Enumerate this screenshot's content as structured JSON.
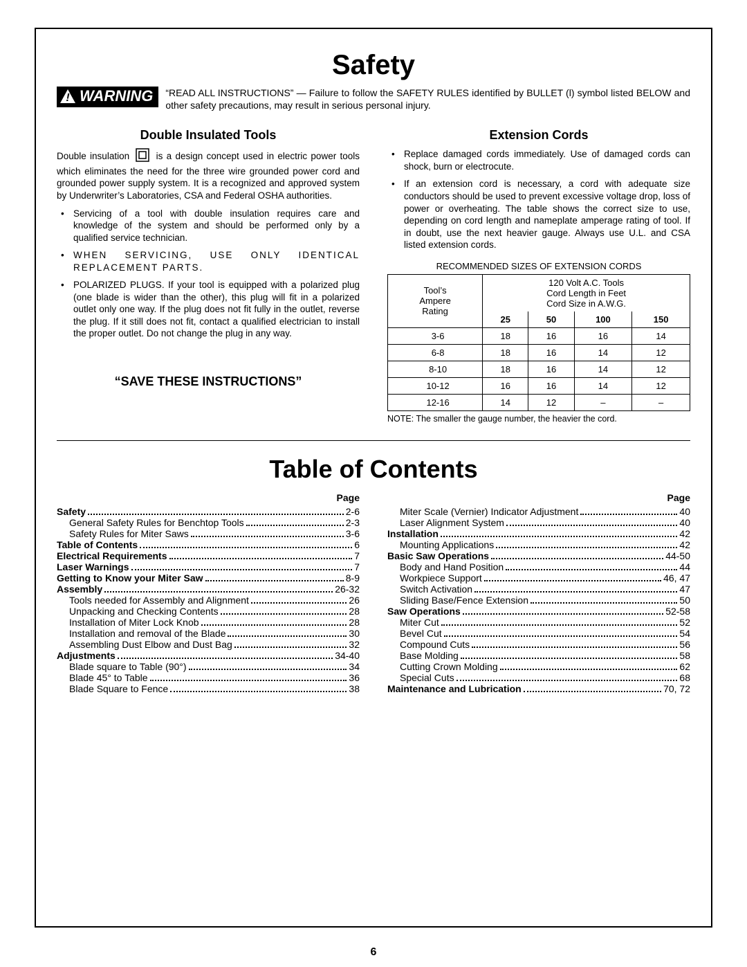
{
  "page_number": "6",
  "title_safety": "Safety",
  "title_toc": "Table of Contents",
  "warning_label": "WARNING",
  "warning_text": "“READ ALL INSTRUCTIONS” — Failure to follow the SAFETY RULES identified by BULLET (l) symbol listed BELOW and other safety precautions, may result in serious personal injury.",
  "left": {
    "heading": "Double Insulated Tools",
    "para_a": "Double insulation",
    "para_b": "is a design concept used in electric power tools which eliminates the need for the three wire grounded power cord and grounded power supply system.  It is a recognized and approved system by Underwriter’s Laboratories, CSA and Federal OSHA authorities.",
    "bullets": [
      "Servicing of a tool with double insulation requires care and knowledge of the system and should be performed only by a qualified service technician.",
      "WHEN SERVICING, USE ONLY IDENTICAL REPLACEMENT PARTS.",
      "POLARIZED PLUGS.  If your tool is equipped with a polarized plug (one blade is wider than the other), this plug will fit in a polarized outlet only one way.  If the plug does not fit fully in the outlet, reverse the plug. If it still does not fit, contact a qualified electrician to install the proper outlet.  Do not change the plug in any way."
    ],
    "save": "“SAVE THESE INSTRUCTIONS”"
  },
  "right": {
    "heading": "Extension Cords",
    "bullets": [
      "Replace damaged cords immediately.  Use of damaged cords can shock, burn or electrocute.",
      "If an extension cord is necessary, a cord with adequate size conductors should be used to prevent excessive voltage drop, loss of power or overheating.  The table shows the correct size to use, depending on cord length and nameplate amperage rating of tool.  If in doubt, use the next heavier gauge.  Always use U.L. and CSA listed extension cords."
    ],
    "table_title": "RECOMMENDED SIZES OF EXTENSION CORDS",
    "table": {
      "head_left": [
        "Tool’s",
        "Ampere",
        "Rating"
      ],
      "head_right": [
        "120 Volt A.C. Tools",
        "Cord Length in Feet",
        "Cord Size in A.W.G."
      ],
      "lengths": [
        "25",
        "50",
        "100",
        "150"
      ],
      "rows": [
        {
          "amp": "3-6",
          "v": [
            "18",
            "16",
            "16",
            "14"
          ]
        },
        {
          "amp": "6-8",
          "v": [
            "18",
            "16",
            "14",
            "12"
          ]
        },
        {
          "amp": "8-10",
          "v": [
            "18",
            "16",
            "14",
            "12"
          ]
        },
        {
          "amp": "10-12",
          "v": [
            "16",
            "16",
            "14",
            "12"
          ]
        },
        {
          "amp": "12-16",
          "v": [
            "14",
            "12",
            "–",
            "–"
          ]
        }
      ]
    },
    "note": "NOTE:  The smaller the gauge number, the heavier the cord."
  },
  "toc": {
    "page_label": "Page",
    "left": [
      {
        "label": "Safety",
        "page": "2-6",
        "bold": true,
        "indent": false
      },
      {
        "label": "General Safety Rules for Benchtop Tools",
        "page": "2-3",
        "bold": false,
        "indent": true
      },
      {
        "label": "Safety Rules for Miter Saws",
        "page": "3-6",
        "bold": false,
        "indent": true
      },
      {
        "label": "Table of Contents",
        "page": "6",
        "bold": true,
        "indent": false
      },
      {
        "label": "Electrical Requirements",
        "page": "7",
        "bold": true,
        "indent": false
      },
      {
        "label": "Laser Warnings",
        "page": "7",
        "bold": true,
        "indent": false
      },
      {
        "label": "Getting to Know your Miter Saw",
        "page": "8-9",
        "bold": true,
        "indent": false
      },
      {
        "label": "Assembly",
        "page": "26-32",
        "bold": true,
        "indent": false
      },
      {
        "label": "Tools needed for Assembly and Alignment",
        "page": "26",
        "bold": false,
        "indent": true
      },
      {
        "label": "Unpacking and Checking Contents",
        "page": "28",
        "bold": false,
        "indent": true
      },
      {
        "label": "Installation of Miter Lock Knob",
        "page": "28",
        "bold": false,
        "indent": true
      },
      {
        "label": "Installation and removal of the Blade",
        "page": "30",
        "bold": false,
        "indent": true
      },
      {
        "label": "Assembling Dust Elbow and Dust Bag",
        "page": "32",
        "bold": false,
        "indent": true
      },
      {
        "label": "Adjustments",
        "page": "34-40",
        "bold": true,
        "indent": false
      },
      {
        "label": "Blade square to Table (90°)",
        "page": "34",
        "bold": false,
        "indent": true
      },
      {
        "label": "Blade 45° to Table",
        "page": "36",
        "bold": false,
        "indent": true
      },
      {
        "label": "Blade Square to Fence",
        "page": "38",
        "bold": false,
        "indent": true
      }
    ],
    "right": [
      {
        "label": "Miter Scale (Vernier) Indicator Adjustment",
        "page": "40",
        "bold": false,
        "indent": true
      },
      {
        "label": "Laser Alignment System",
        "page": "40",
        "bold": false,
        "indent": true
      },
      {
        "label": "Installation",
        "page": "42",
        "bold": true,
        "indent": false
      },
      {
        "label": "Mounting Applications",
        "page": "42",
        "bold": false,
        "indent": true
      },
      {
        "label": "Basic Saw Operations",
        "page": "44-50",
        "bold": true,
        "indent": false
      },
      {
        "label": "Body and Hand Position",
        "page": "44",
        "bold": false,
        "indent": true
      },
      {
        "label": "Workpiece Support",
        "page": "46, 47",
        "bold": false,
        "indent": true
      },
      {
        "label": "Switch Activation",
        "page": "47",
        "bold": false,
        "indent": true
      },
      {
        "label": "Sliding Base/Fence Extension",
        "page": "50",
        "bold": false,
        "indent": true
      },
      {
        "label": "Saw Operations",
        "page": "52-58",
        "bold": true,
        "indent": false
      },
      {
        "label": "Miter Cut",
        "page": "52",
        "bold": false,
        "indent": true
      },
      {
        "label": "Bevel Cut",
        "page": "54",
        "bold": false,
        "indent": true
      },
      {
        "label": "Compound Cuts",
        "page": "56",
        "bold": false,
        "indent": true
      },
      {
        "label": "Base Molding",
        "page": "58",
        "bold": false,
        "indent": true
      },
      {
        "label": "Cutting Crown Molding",
        "page": "62",
        "bold": false,
        "indent": true
      },
      {
        "label": "Special Cuts",
        "page": "68",
        "bold": false,
        "indent": true
      },
      {
        "label": "Maintenance and Lubrication",
        "page": "70, 72",
        "bold": true,
        "indent": false
      }
    ]
  }
}
